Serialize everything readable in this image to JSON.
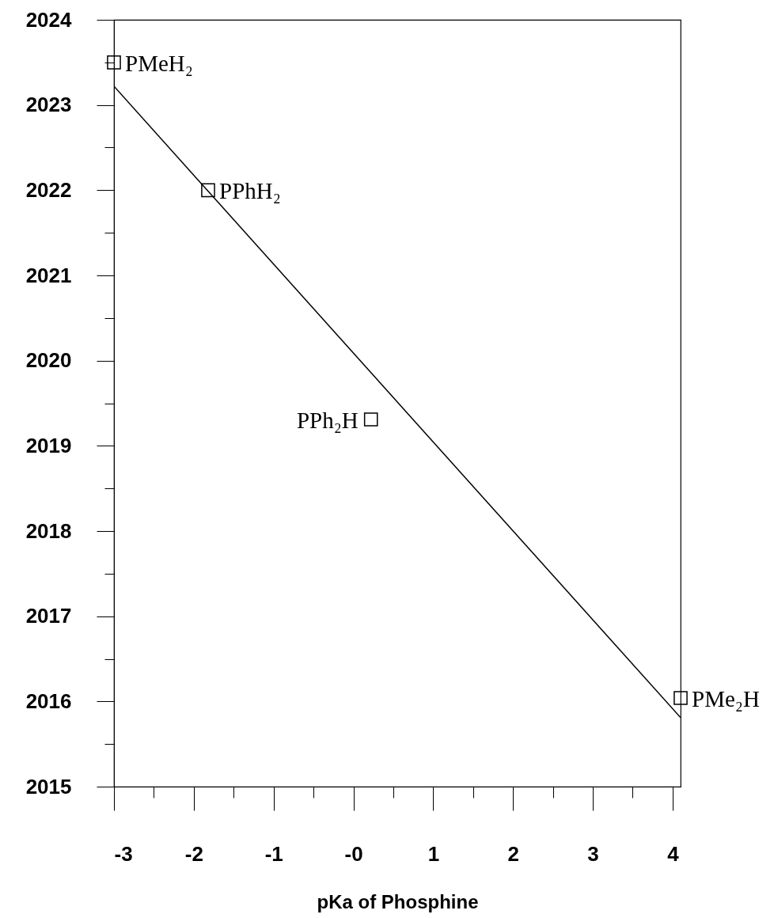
{
  "chart_data": {
    "type": "scatter",
    "xlabel": "pKa of Phosphine",
    "xlim": [
      -3,
      4.1
    ],
    "ylim": [
      2015,
      2024
    ],
    "xticks": [
      -3,
      {
        "value": -2.5,
        "label": null
      },
      -2,
      {
        "value": -1.5,
        "label": null
      },
      -1,
      {
        "value": -0.5,
        "label": null
      },
      {
        "value": 0,
        "label": "-0"
      },
      {
        "value": 0.5,
        "label": null
      },
      1,
      {
        "value": 1.5,
        "label": null
      },
      2,
      {
        "value": 2.5,
        "label": null
      },
      3,
      {
        "value": 3.5,
        "label": null
      },
      4
    ],
    "yticks": [
      2015,
      {
        "value": 2015.5,
        "label": null
      },
      2016,
      {
        "value": 2016.5,
        "label": null
      },
      2017,
      {
        "value": 2017.5,
        "label": null
      },
      2018,
      {
        "value": 2018.5,
        "label": null
      },
      2019,
      {
        "value": 2019.5,
        "label": null
      },
      2020,
      {
        "value": 2020.5,
        "label": null
      },
      2021,
      {
        "value": 2021.5,
        "label": null
      },
      2022,
      {
        "value": 2022.5,
        "label": null
      },
      2023,
      {
        "value": 2023.5,
        "label": null
      },
      2024
    ],
    "grid": false,
    "series": [
      {
        "type": "line",
        "color": "#000000",
        "x": [
          -3,
          4.1
        ],
        "values": [
          2023.22,
          2015.81
        ]
      },
      {
        "type": "scatter",
        "color": "#000000",
        "marker": "square",
        "x": [
          -3.0,
          -1.82,
          0.22,
          4.1
        ],
        "values": [
          2023.5,
          2022.0,
          2019.31,
          2016.04
        ]
      }
    ],
    "annotations": [
      {
        "text": "PMeH₂",
        "x": -3.0,
        "y": 2023.5
      },
      {
        "text": "PPhH₂",
        "x": -1.82,
        "y": 2022.0
      },
      {
        "text": "PPh₂H",
        "x": 0.22,
        "y": 2019.31
      },
      {
        "text": "PMe₂H",
        "x": 4.1,
        "y": 2016.04
      }
    ]
  }
}
